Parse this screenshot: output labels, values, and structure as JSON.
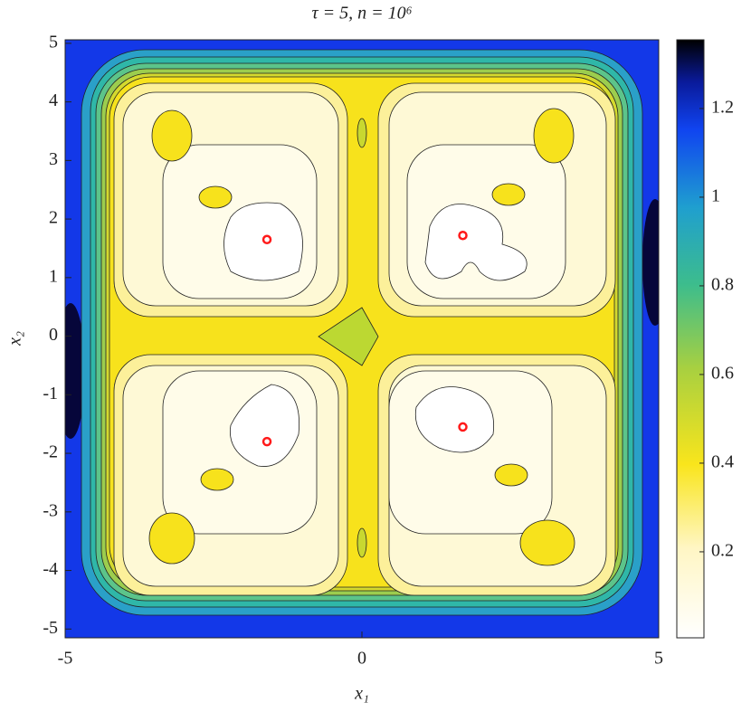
{
  "chart_data": {
    "type": "contour",
    "title": "τ = 5, n = 10⁶",
    "xlabel": "x₁",
    "ylabel": "x₂",
    "xlim": [
      -5,
      5
    ],
    "ylim": [
      -5.15,
      5.06
    ],
    "xticks": [
      -5,
      0,
      5
    ],
    "yticks": [
      -5,
      -4,
      -3,
      -2,
      -1,
      0,
      1,
      2,
      3,
      4,
      5
    ],
    "clim": [
      0.006,
      1.355
    ],
    "cticks": [
      0.2,
      0.4,
      0.6,
      0.8,
      1,
      1.2
    ],
    "points": {
      "x": [
        -1.6,
        1.7,
        -1.6,
        1.7
      ],
      "y": [
        1.65,
        1.72,
        -1.8,
        -1.55
      ],
      "color": "#ff1a1a"
    }
  }
}
